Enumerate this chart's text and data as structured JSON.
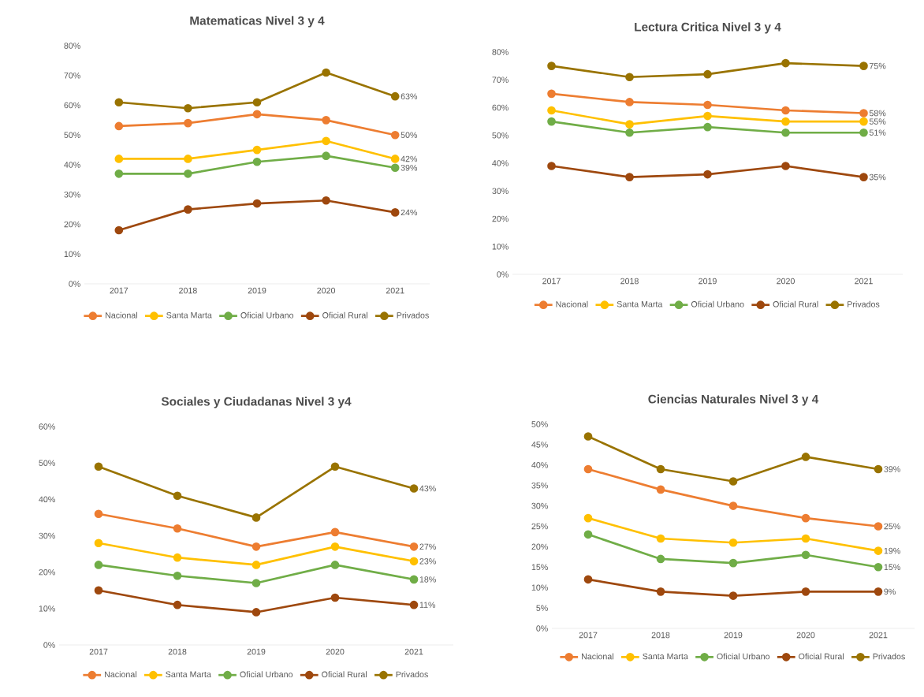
{
  "chart_data": [
    {
      "type": "line",
      "title": "Matematicas Nivel 3 y 4",
      "categories": [
        "2017",
        "2018",
        "2019",
        "2020",
        "2021"
      ],
      "ylim": [
        0,
        80
      ],
      "yticks": [
        {
          "value": 0,
          "label": "0%"
        },
        {
          "value": 10,
          "label": "10%"
        },
        {
          "value": 20,
          "label": "20%"
        },
        {
          "value": 30,
          "label": "30%"
        },
        {
          "value": 40,
          "label": "40%"
        },
        {
          "value": 50,
          "label": "50%"
        },
        {
          "value": 60,
          "label": "60%"
        },
        {
          "value": 70,
          "label": "70%"
        },
        {
          "value": 80,
          "label": "80%"
        }
      ],
      "legend": "bottom",
      "marker": "circle",
      "series": [
        {
          "name": "Nacional",
          "color": "#ed7d31",
          "values": [
            53,
            54,
            57,
            55,
            50
          ],
          "value_labels": [
            null,
            null,
            null,
            null,
            "50%"
          ]
        },
        {
          "name": "Santa Marta",
          "color": "#ffc000",
          "values": [
            42,
            42,
            45,
            48,
            42
          ],
          "value_labels": [
            null,
            null,
            null,
            null,
            "42%"
          ]
        },
        {
          "name": "Oficial Urbano",
          "color": "#70ad47",
          "values": [
            37,
            37,
            41,
            43,
            39
          ],
          "value_labels": [
            null,
            null,
            null,
            null,
            "39%"
          ]
        },
        {
          "name": "Oficial Rural",
          "color": "#9e480e",
          "values": [
            18,
            25,
            27,
            28,
            24
          ],
          "value_labels": [
            null,
            null,
            null,
            null,
            "24%"
          ]
        },
        {
          "name": "Privados",
          "color": "#997300",
          "values": [
            61,
            59,
            61,
            71,
            63
          ],
          "value_labels": [
            null,
            null,
            null,
            null,
            "63%"
          ]
        }
      ]
    },
    {
      "type": "line",
      "title": "Lectura Critica Nivel 3 y 4",
      "categories": [
        "2017",
        "2018",
        "2019",
        "2020",
        "2021"
      ],
      "ylim": [
        0,
        80
      ],
      "yticks": [
        {
          "value": 0,
          "label": "0%"
        },
        {
          "value": 10,
          "label": "10%"
        },
        {
          "value": 20,
          "label": "20%"
        },
        {
          "value": 30,
          "label": "30%"
        },
        {
          "value": 40,
          "label": "40%"
        },
        {
          "value": 50,
          "label": "50%"
        },
        {
          "value": 60,
          "label": "60%"
        },
        {
          "value": 70,
          "label": "70%"
        },
        {
          "value": 80,
          "label": "80%"
        }
      ],
      "legend": "bottom",
      "marker": "circle",
      "series": [
        {
          "name": "Nacional",
          "color": "#ed7d31",
          "values": [
            65,
            62,
            61,
            59,
            58
          ],
          "value_labels": [
            null,
            null,
            null,
            null,
            "58%"
          ]
        },
        {
          "name": "Santa Marta",
          "color": "#ffc000",
          "values": [
            59,
            54,
            57,
            55,
            55
          ],
          "value_labels": [
            null,
            null,
            null,
            null,
            "55%"
          ]
        },
        {
          "name": "Oficial Urbano",
          "color": "#70ad47",
          "values": [
            55,
            51,
            53,
            51,
            51
          ],
          "value_labels": [
            null,
            null,
            null,
            null,
            "51%"
          ]
        },
        {
          "name": "Oficial Rural",
          "color": "#9e480e",
          "values": [
            39,
            35,
            36,
            39,
            35
          ],
          "value_labels": [
            null,
            null,
            null,
            null,
            "35%"
          ]
        },
        {
          "name": "Privados",
          "color": "#997300",
          "values": [
            75,
            71,
            72,
            76,
            75
          ],
          "value_labels": [
            null,
            null,
            null,
            null,
            "75%"
          ]
        }
      ]
    },
    {
      "type": "line",
      "title": "Sociales y Ciudadanas Nivel 3 y4",
      "categories": [
        "2017",
        "2018",
        "2019",
        "2020",
        "2021"
      ],
      "ylim": [
        0,
        60
      ],
      "yticks": [
        {
          "value": 0,
          "label": "0%"
        },
        {
          "value": 10,
          "label": "10%"
        },
        {
          "value": 20,
          "label": "20%"
        },
        {
          "value": 30,
          "label": "30%"
        },
        {
          "value": 40,
          "label": "40%"
        },
        {
          "value": 50,
          "label": "50%"
        },
        {
          "value": 60,
          "label": "60%"
        }
      ],
      "legend": "bottom",
      "marker": "circle",
      "series": [
        {
          "name": "Nacional",
          "color": "#ed7d31",
          "values": [
            36,
            32,
            27,
            31,
            27
          ],
          "value_labels": [
            null,
            null,
            null,
            null,
            "27%"
          ]
        },
        {
          "name": "Santa Marta",
          "color": "#ffc000",
          "values": [
            28,
            24,
            22,
            27,
            23
          ],
          "value_labels": [
            null,
            null,
            null,
            null,
            "23%"
          ]
        },
        {
          "name": "Oficial Urbano",
          "color": "#70ad47",
          "values": [
            22,
            19,
            17,
            22,
            18
          ],
          "value_labels": [
            null,
            null,
            null,
            null,
            "18%"
          ]
        },
        {
          "name": "Oficial Rural",
          "color": "#9e480e",
          "values": [
            15,
            11,
            9,
            13,
            11
          ],
          "value_labels": [
            null,
            null,
            null,
            null,
            "11%"
          ]
        },
        {
          "name": "Privados",
          "color": "#997300",
          "values": [
            49,
            41,
            35,
            49,
            43
          ],
          "value_labels": [
            null,
            null,
            null,
            null,
            "43%"
          ]
        }
      ]
    },
    {
      "type": "line",
      "title": "Ciencias Naturales Nivel 3 y 4",
      "categories": [
        "2017",
        "2018",
        "2019",
        "2020",
        "2021"
      ],
      "ylim": [
        0,
        50
      ],
      "yticks": [
        {
          "value": 0,
          "label": "0%"
        },
        {
          "value": 5,
          "label": "5%"
        },
        {
          "value": 10,
          "label": "10%"
        },
        {
          "value": 15,
          "label": "15%"
        },
        {
          "value": 20,
          "label": "20%"
        },
        {
          "value": 25,
          "label": "25%"
        },
        {
          "value": 30,
          "label": "30%"
        },
        {
          "value": 35,
          "label": "35%"
        },
        {
          "value": 40,
          "label": "40%"
        },
        {
          "value": 45,
          "label": "45%"
        },
        {
          "value": 50,
          "label": "50%"
        }
      ],
      "legend": "bottom",
      "marker": "circle",
      "series": [
        {
          "name": "Nacional",
          "color": "#ed7d31",
          "values": [
            39,
            34,
            30,
            27,
            25
          ],
          "value_labels": [
            null,
            null,
            null,
            null,
            "25%"
          ]
        },
        {
          "name": "Santa Marta",
          "color": "#ffc000",
          "values": [
            27,
            22,
            21,
            22,
            19
          ],
          "value_labels": [
            null,
            null,
            null,
            null,
            "19%"
          ]
        },
        {
          "name": "Oficial Urbano",
          "color": "#70ad47",
          "values": [
            23,
            17,
            16,
            18,
            15
          ],
          "value_labels": [
            null,
            null,
            null,
            null,
            "15%"
          ]
        },
        {
          "name": "Oficial Rural",
          "color": "#9e480e",
          "values": [
            12,
            9,
            8,
            9,
            9
          ],
          "value_labels": [
            null,
            null,
            null,
            null,
            "9%"
          ]
        },
        {
          "name": "Privados",
          "color": "#997300",
          "values": [
            47,
            39,
            36,
            42,
            39
          ],
          "value_labels": [
            null,
            null,
            null,
            null,
            "39%"
          ]
        }
      ]
    }
  ]
}
